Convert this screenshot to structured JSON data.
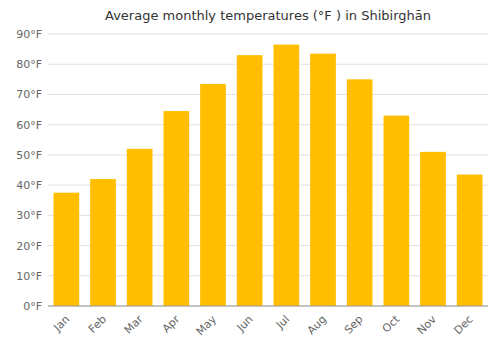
{
  "chart_data": {
    "type": "bar",
    "title": "Average monthly temperatures (°F ) in Shibirghān",
    "categories": [
      "Jan",
      "Feb",
      "Mar",
      "Apr",
      "May",
      "Jun",
      "Jul",
      "Aug",
      "Sep",
      "Oct",
      "Nov",
      "Dec"
    ],
    "values": [
      37.5,
      42.0,
      52.0,
      64.5,
      73.5,
      83.0,
      86.5,
      83.5,
      75.0,
      63.0,
      51.0,
      43.5
    ],
    "color": "#FFBF00",
    "ylim": [
      0,
      90
    ],
    "yticks": [
      {
        "value": 0,
        "label": "0°F"
      },
      {
        "value": 10,
        "label": "10°F"
      },
      {
        "value": 20,
        "label": "20°F"
      },
      {
        "value": 30,
        "label": "30°F"
      },
      {
        "value": 40,
        "label": "40°F"
      },
      {
        "value": 50,
        "label": "50°F"
      },
      {
        "value": 60,
        "label": "60°F"
      },
      {
        "value": 70,
        "label": "70°F"
      },
      {
        "value": 80,
        "label": "80°F"
      },
      {
        "value": 90,
        "label": "90°F"
      }
    ],
    "grid": true
  }
}
